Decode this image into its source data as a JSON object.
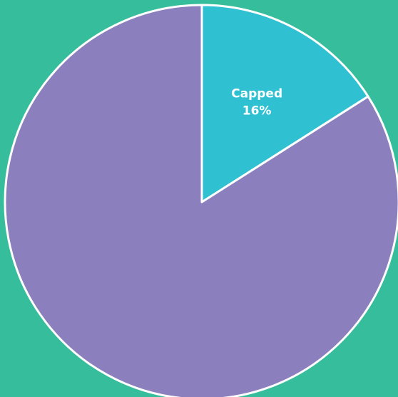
{
  "theme": {
    "background": "#36bd9b"
  },
  "chart_data": {
    "type": "pie",
    "start_angle_deg": 0,
    "direction": "clockwise",
    "slices": [
      {
        "label": "Capped",
        "value": 16,
        "value_label": "16%",
        "color": "#2fc0d1",
        "show_label": true
      },
      {
        "label": "",
        "value": 84,
        "value_label": "",
        "color": "#8c7fbd",
        "show_label": false
      }
    ]
  }
}
